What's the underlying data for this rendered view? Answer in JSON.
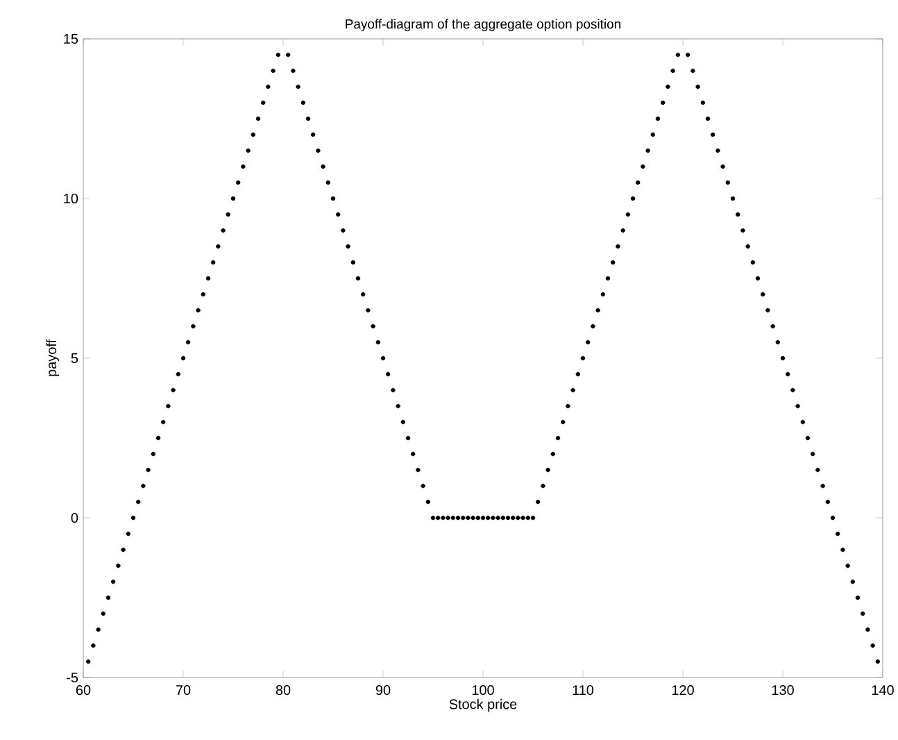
{
  "chart_data": {
    "type": "scatter",
    "title": "Payoff-diagram of the aggregate option position",
    "xlabel": "Stock price",
    "ylabel": "payoff",
    "x": [
      60.5,
      61,
      61.5,
      62,
      62.5,
      63,
      63.5,
      64,
      64.5,
      65,
      65.5,
      66,
      66.5,
      67,
      67.5,
      68,
      68.5,
      69,
      69.5,
      70,
      70.5,
      71,
      71.5,
      72,
      72.5,
      73,
      73.5,
      74,
      74.5,
      75,
      75.5,
      76,
      76.5,
      77,
      77.5,
      78,
      78.5,
      79,
      79.5,
      80.5,
      81,
      81.5,
      82,
      82.5,
      83,
      83.5,
      84,
      84.5,
      85,
      85.5,
      86,
      86.5,
      87,
      87.5,
      88,
      88.5,
      89,
      89.5,
      90,
      90.5,
      91,
      91.5,
      92,
      92.5,
      93,
      93.5,
      94,
      94.5,
      95,
      95.5,
      96,
      96.5,
      97,
      97.5,
      98,
      98.5,
      99,
      99.5,
      100,
      100.5,
      101,
      101.5,
      102,
      102.5,
      103,
      103.5,
      104,
      104.5,
      105,
      105.5,
      106,
      106.5,
      107,
      107.5,
      108,
      108.5,
      109,
      109.5,
      110,
      110.5,
      111,
      111.5,
      112,
      112.5,
      113,
      113.5,
      114,
      114.5,
      115,
      115.5,
      116,
      116.5,
      117,
      117.5,
      118,
      118.5,
      119,
      119.5,
      120.5,
      121,
      121.5,
      122,
      122.5,
      123,
      123.5,
      124,
      124.5,
      125,
      125.5,
      126,
      126.5,
      127,
      127.5,
      128,
      128.5,
      129,
      129.5,
      130,
      130.5,
      131,
      131.5,
      132,
      132.5,
      133,
      133.5,
      134,
      134.5,
      135,
      135.5,
      136,
      136.5,
      137,
      137.5,
      138,
      138.5,
      139,
      139.5
    ],
    "values": [
      -4.5,
      -4,
      -3.5,
      -3,
      -2.5,
      -2,
      -1.5,
      -1,
      -0.5,
      0,
      0.5,
      1,
      1.5,
      2,
      2.5,
      3,
      3.5,
      4,
      4.5,
      5,
      5.5,
      6,
      6.5,
      7,
      7.5,
      8,
      8.5,
      9,
      9.5,
      10,
      10.5,
      11,
      11.5,
      12,
      12.5,
      13,
      13.5,
      14,
      14.5,
      14.5,
      14,
      13.5,
      13,
      12.5,
      12,
      11.5,
      11,
      10.5,
      10,
      9.5,
      9,
      8.5,
      8,
      7.5,
      7,
      6.5,
      6,
      5.5,
      5,
      4.5,
      4,
      3.5,
      3,
      2.5,
      2,
      1.5,
      1,
      0.5,
      0,
      0,
      0,
      0,
      0,
      0,
      0,
      0,
      0,
      0,
      0,
      0,
      0,
      0,
      0,
      0,
      0,
      0,
      0,
      0,
      0,
      0.5,
      1,
      1.5,
      2,
      2.5,
      3,
      3.5,
      4,
      4.5,
      5,
      5.5,
      6,
      6.5,
      7,
      7.5,
      8,
      8.5,
      9,
      9.5,
      10,
      10.5,
      11,
      11.5,
      12,
      12.5,
      13,
      13.5,
      14,
      14.5,
      14.5,
      14,
      13.5,
      13,
      12.5,
      12,
      11.5,
      11,
      10.5,
      10,
      9.5,
      9,
      8.5,
      8,
      7.5,
      7,
      6.5,
      6,
      5.5,
      5,
      4.5,
      4,
      3.5,
      3,
      2.5,
      2,
      1.5,
      1,
      0.5,
      0,
      -0.5,
      -1,
      -1.5,
      -2,
      -2.5,
      -3,
      -3.5,
      -4,
      -4.5
    ],
    "color": "#000000",
    "marker": "circle",
    "xlim": [
      60,
      140
    ],
    "xticks": [
      60,
      70,
      80,
      90,
      100,
      110,
      120,
      130,
      140
    ],
    "ylim": [
      -5,
      15
    ],
    "yticks": [
      -5,
      0,
      5,
      10,
      15
    ],
    "grid": false,
    "legend": false
  }
}
